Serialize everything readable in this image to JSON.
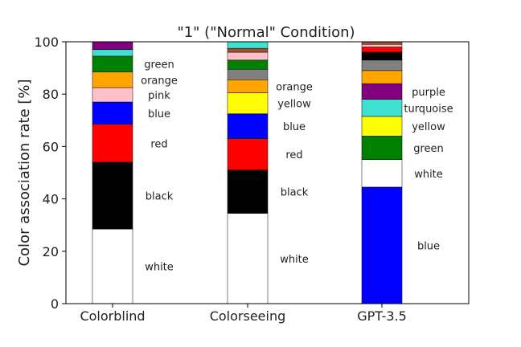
{
  "chart_data": {
    "type": "bar",
    "stacked": true,
    "title": "\"1\" (\"Normal\" Condition)",
    "xlabel": "",
    "ylabel": "Color association rate [%]",
    "ylim": [
      0,
      100
    ],
    "yticks": [
      0,
      20,
      40,
      60,
      80,
      100
    ],
    "grid": false,
    "categories": [
      "Colorblind",
      "Colorseeing",
      "GPT-3.5"
    ],
    "bars": [
      {
        "category": "Colorblind",
        "segments": [
          {
            "label": "white",
            "value": 28.5,
            "color": "#ffffff"
          },
          {
            "label": "black",
            "value": 25.5,
            "color": "#000000"
          },
          {
            "label": "red",
            "value": 14.5,
            "color": "#ff0000"
          },
          {
            "label": "blue",
            "value": 8.5,
            "color": "#0000ff"
          },
          {
            "label": "pink",
            "value": 5.5,
            "color": "#ffc0cb"
          },
          {
            "label": "orange",
            "value": 6.0,
            "color": "#ffa500"
          },
          {
            "label": "green",
            "value": 6.0,
            "color": "#008000"
          },
          {
            "label": "",
            "value": 2.5,
            "color": "#40e0d0"
          },
          {
            "label": "",
            "value": 3.0,
            "color": "#800080"
          }
        ]
      },
      {
        "category": "Colorseeing",
        "segments": [
          {
            "label": "white",
            "value": 34.5,
            "color": "#ffffff"
          },
          {
            "label": "black",
            "value": 16.5,
            "color": "#000000"
          },
          {
            "label": "red",
            "value": 12.0,
            "color": "#ff0000"
          },
          {
            "label": "blue",
            "value": 9.5,
            "color": "#0000ff"
          },
          {
            "label": "yellow",
            "value": 8.0,
            "color": "#ffff00"
          },
          {
            "label": "orange",
            "value": 5.0,
            "color": "#ffa500"
          },
          {
            "label": "",
            "value": 4.0,
            "color": "#808080"
          },
          {
            "label": "",
            "value": 3.5,
            "color": "#008000"
          },
          {
            "label": "",
            "value": 3.0,
            "color": "#ffc0cb"
          },
          {
            "label": "",
            "value": 1.5,
            "color": "#a0522d"
          },
          {
            "label": "",
            "value": 2.5,
            "color": "#40e0d0"
          }
        ]
      },
      {
        "category": "GPT-3.5",
        "segments": [
          {
            "label": "blue",
            "value": 44.5,
            "color": "#0000ff"
          },
          {
            "label": "white",
            "value": 10.5,
            "color": "#ffffff"
          },
          {
            "label": "green",
            "value": 9.0,
            "color": "#008000"
          },
          {
            "label": "yellow",
            "value": 7.5,
            "color": "#ffff00"
          },
          {
            "label": "turquoise",
            "value": 6.5,
            "color": "#40e0d0"
          },
          {
            "label": "purple",
            "value": 6.0,
            "color": "#800080"
          },
          {
            "label": "",
            "value": 5.0,
            "color": "#ffa500"
          },
          {
            "label": "",
            "value": 4.0,
            "color": "#808080"
          },
          {
            "label": "",
            "value": 3.0,
            "color": "#000000"
          },
          {
            "label": "",
            "value": 2.0,
            "color": "#ff0000"
          },
          {
            "label": "",
            "value": 1.0,
            "color": "#ffc0cb"
          },
          {
            "label": "",
            "value": 1.0,
            "color": "#a0522d"
          }
        ]
      }
    ]
  }
}
